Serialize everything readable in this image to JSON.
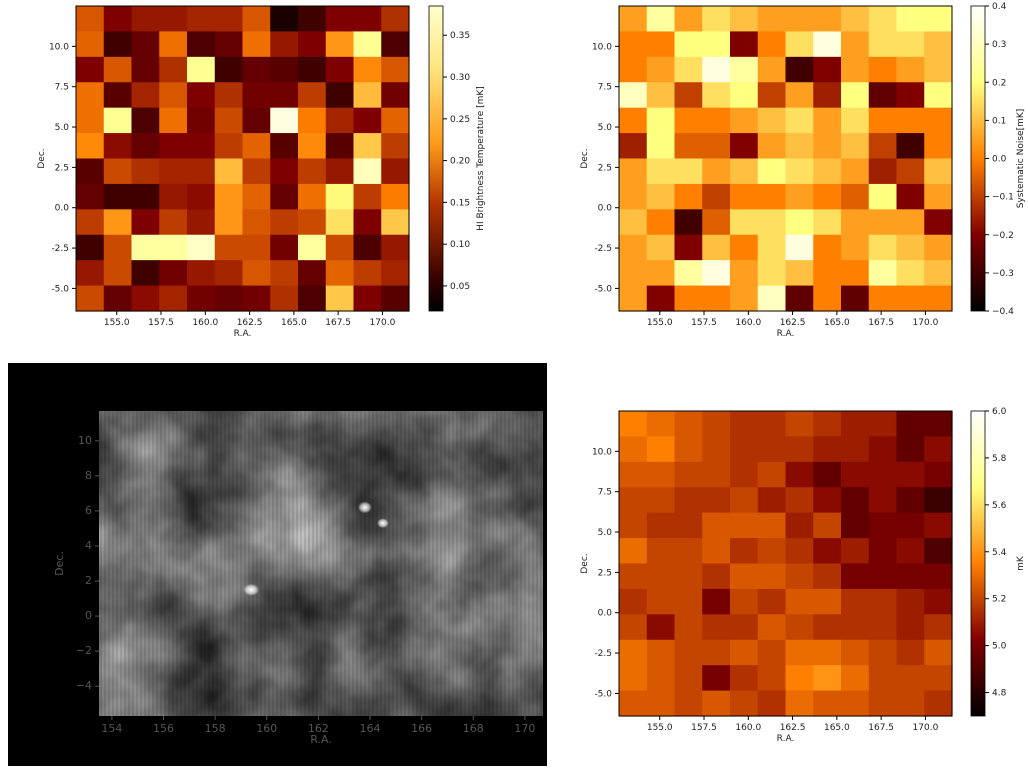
{
  "chart_data": [
    {
      "type": "heatmap",
      "title": "",
      "xlabel": "R.A.",
      "ylabel": "Dec.",
      "xlim": [
        152.7,
        171.5
      ],
      "ylim": [
        -6.4,
        12.5
      ],
      "xticks": [
        "155.0",
        "157.5",
        "160.0",
        "162.5",
        "165.0",
        "167.5",
        "170.0"
      ],
      "yticks": [
        "-5.0",
        "-2.5",
        "0.0",
        "2.5",
        "5.0",
        "7.5",
        "10.0"
      ],
      "colormap": "afmhot",
      "colorbar": {
        "label": "HI Brightness Temperature [mK]",
        "range": [
          0.02,
          0.385
        ],
        "ticks": [
          "0.05",
          "0.10",
          "0.15",
          "0.20",
          "0.25",
          "0.30",
          "0.35"
        ]
      },
      "values": [
        [
          0.17,
          0.1,
          0.12,
          0.12,
          0.13,
          0.13,
          0.17,
          0.02,
          0.05,
          0.1,
          0.1,
          0.14
        ],
        [
          0.18,
          0.05,
          0.08,
          0.19,
          0.06,
          0.08,
          0.19,
          0.12,
          0.1,
          0.22,
          0.32,
          0.06
        ],
        [
          0.1,
          0.17,
          0.08,
          0.14,
          0.32,
          0.05,
          0.08,
          0.07,
          0.05,
          0.1,
          0.21,
          0.17
        ],
        [
          0.19,
          0.07,
          0.13,
          0.17,
          0.1,
          0.14,
          0.09,
          0.09,
          0.15,
          0.05,
          0.25,
          0.09
        ],
        [
          0.19,
          0.32,
          0.06,
          0.19,
          0.09,
          0.16,
          0.08,
          0.38,
          0.2,
          0.13,
          0.1,
          0.18
        ],
        [
          0.21,
          0.11,
          0.08,
          0.1,
          0.1,
          0.15,
          0.18,
          0.07,
          0.21,
          0.07,
          0.26,
          0.15
        ],
        [
          0.07,
          0.16,
          0.14,
          0.13,
          0.13,
          0.25,
          0.15,
          0.1,
          0.15,
          0.12,
          0.35,
          0.12
        ],
        [
          0.08,
          0.05,
          0.05,
          0.12,
          0.11,
          0.22,
          0.18,
          0.08,
          0.19,
          0.3,
          0.15,
          0.2
        ],
        [
          0.15,
          0.22,
          0.1,
          0.15,
          0.12,
          0.22,
          0.17,
          0.15,
          0.16,
          0.28,
          0.1,
          0.26
        ],
        [
          0.05,
          0.16,
          0.33,
          0.33,
          0.36,
          0.16,
          0.16,
          0.09,
          0.33,
          0.16,
          0.06,
          0.12
        ],
        [
          0.12,
          0.16,
          0.05,
          0.09,
          0.12,
          0.13,
          0.17,
          0.15,
          0.08,
          0.18,
          0.15,
          0.13
        ],
        [
          0.16,
          0.08,
          0.11,
          0.13,
          0.09,
          0.08,
          0.09,
          0.14,
          0.06,
          0.26,
          0.1,
          0.07
        ]
      ]
    },
    {
      "type": "heatmap",
      "title": "",
      "xlabel": "R.A.",
      "ylabel": "Dec.",
      "xlim": [
        152.7,
        171.5
      ],
      "ylim": [
        -6.4,
        12.5
      ],
      "xticks": [
        "155.0",
        "157.5",
        "160.0",
        "162.5",
        "165.0",
        "167.5",
        "170.0"
      ],
      "yticks": [
        "-5.0",
        "-2.5",
        "0.0",
        "2.5",
        "5.0",
        "7.5",
        "10.0"
      ],
      "colormap": "afmhot",
      "colorbar": {
        "label": "Systematic Noise[mK]",
        "range": [
          -0.4,
          0.4
        ],
        "ticks": [
          "−0.4",
          "−0.3",
          "−0.2",
          "−0.1",
          "0.0",
          "0.1",
          "0.2",
          "0.3",
          "0.4"
        ]
      },
      "values": [
        [
          0.05,
          0.25,
          0.05,
          0.15,
          0.1,
          0.05,
          0.05,
          0.05,
          0.1,
          0.15,
          0.2,
          0.2
        ],
        [
          0.0,
          0.0,
          0.2,
          0.2,
          -0.2,
          0.0,
          0.15,
          0.35,
          0.05,
          0.15,
          0.15,
          0.1
        ],
        [
          0.0,
          0.05,
          0.15,
          0.35,
          0.25,
          0.05,
          -0.3,
          -0.2,
          0.05,
          0.0,
          0.05,
          0.1
        ],
        [
          0.3,
          0.1,
          -0.1,
          0.15,
          0.2,
          -0.1,
          0.05,
          -0.15,
          0.2,
          -0.25,
          -0.2,
          0.2
        ],
        [
          0.0,
          0.2,
          0.0,
          0.0,
          0.05,
          0.1,
          0.15,
          0.05,
          0.15,
          0.0,
          0.0,
          0.0
        ],
        [
          -0.15,
          0.2,
          -0.05,
          -0.05,
          -0.2,
          0.05,
          0.1,
          0.05,
          0.1,
          -0.1,
          -0.3,
          0.0
        ],
        [
          0.05,
          0.15,
          0.15,
          0.05,
          0.1,
          0.2,
          0.15,
          0.1,
          0.05,
          -0.15,
          -0.1,
          0.1
        ],
        [
          0.05,
          0.1,
          0.0,
          -0.1,
          0.0,
          0.0,
          0.05,
          0.0,
          -0.05,
          0.2,
          -0.2,
          0.05
        ],
        [
          0.1,
          0.0,
          -0.3,
          -0.05,
          0.15,
          0.15,
          0.2,
          0.15,
          0.05,
          0.05,
          0.05,
          -0.2
        ],
        [
          0.05,
          0.1,
          -0.2,
          0.1,
          0.0,
          0.15,
          0.35,
          0.0,
          0.05,
          0.15,
          0.1,
          0.05
        ],
        [
          0.05,
          0.05,
          0.25,
          0.35,
          0.05,
          0.15,
          0.1,
          0.0,
          0.0,
          0.25,
          0.15,
          0.1
        ],
        [
          0.05,
          -0.2,
          0.0,
          0.0,
          0.05,
          0.3,
          -0.25,
          0.0,
          -0.25,
          0.0,
          0.0,
          0.0
        ]
      ]
    },
    {
      "type": "heatmap",
      "title": "",
      "xlabel": "R.A.",
      "ylabel": "Dec.",
      "xlim": [
        153.5,
        170.7
      ],
      "ylim": [
        -5.7,
        11.7
      ],
      "xticks": [
        "154",
        "156",
        "158",
        "160",
        "162",
        "164",
        "166",
        "168",
        "170"
      ],
      "yticks": [
        "−4",
        "−2",
        "0",
        "2",
        "4",
        "6",
        "8",
        "10"
      ],
      "colormap": "gray",
      "note": "continuous grayscale intensity map with bright compact sources near (159.4, 1.5), (163.8, 6.2) and (164.4, 5.2)"
    },
    {
      "type": "heatmap",
      "title": "",
      "xlabel": "R.A.",
      "ylabel": "Dec.",
      "xlim": [
        152.7,
        171.5
      ],
      "ylim": [
        -6.4,
        12.5
      ],
      "xticks": [
        "155.0",
        "157.5",
        "160.0",
        "162.5",
        "165.0",
        "167.5",
        "170.0"
      ],
      "yticks": [
        "-5.0",
        "-2.5",
        "0.0",
        "2.5",
        "5.0",
        "7.5",
        "10.0"
      ],
      "colormap": "afmhot",
      "colorbar": {
        "label": "mK",
        "range": [
          4.7,
          6.0
        ],
        "ticks": [
          "4.8",
          "5.0",
          "5.2",
          "5.4",
          "5.6",
          "5.8",
          "6.0"
        ]
      },
      "values": [
        [
          5.35,
          5.3,
          5.25,
          5.2,
          5.15,
          5.15,
          5.2,
          5.15,
          5.1,
          5.1,
          4.95,
          4.95
        ],
        [
          5.3,
          5.35,
          5.25,
          5.2,
          5.15,
          5.15,
          5.15,
          5.1,
          5.1,
          5.05,
          4.95,
          5.05
        ],
        [
          5.25,
          5.25,
          5.2,
          5.2,
          5.15,
          5.2,
          5.05,
          4.95,
          5.05,
          5.05,
          5.05,
          5.0
        ],
        [
          5.2,
          5.2,
          5.15,
          5.15,
          5.2,
          5.1,
          5.15,
          5.05,
          4.95,
          5.05,
          4.95,
          4.85
        ],
        [
          5.2,
          5.15,
          5.15,
          5.25,
          5.25,
          5.25,
          5.1,
          5.2,
          4.95,
          5.0,
          5.0,
          5.05
        ],
        [
          5.3,
          5.2,
          5.2,
          5.25,
          5.15,
          5.2,
          5.15,
          5.05,
          5.1,
          5.0,
          5.05,
          4.9
        ],
        [
          5.2,
          5.2,
          5.2,
          5.15,
          5.25,
          5.25,
          5.2,
          5.15,
          5.0,
          5.0,
          5.0,
          5.0
        ],
        [
          5.15,
          5.2,
          5.2,
          5.0,
          5.2,
          5.15,
          5.25,
          5.25,
          5.15,
          5.15,
          5.1,
          5.05
        ],
        [
          5.2,
          5.05,
          5.2,
          5.15,
          5.15,
          5.25,
          5.2,
          5.15,
          5.15,
          5.15,
          5.1,
          5.15
        ],
        [
          5.3,
          5.25,
          5.2,
          5.2,
          5.25,
          5.2,
          5.3,
          5.3,
          5.25,
          5.2,
          5.15,
          5.25
        ],
        [
          5.3,
          5.25,
          5.2,
          5.0,
          5.15,
          5.2,
          5.35,
          5.4,
          5.3,
          5.2,
          5.2,
          5.2
        ],
        [
          5.25,
          5.25,
          5.2,
          5.25,
          5.2,
          5.15,
          5.3,
          5.25,
          5.25,
          5.2,
          5.2,
          5.15
        ]
      ]
    }
  ]
}
